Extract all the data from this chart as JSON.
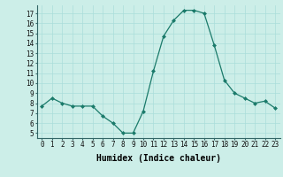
{
  "x": [
    0,
    1,
    2,
    3,
    4,
    5,
    6,
    7,
    8,
    9,
    10,
    11,
    12,
    13,
    14,
    15,
    16,
    17,
    18,
    19,
    20,
    21,
    22,
    23
  ],
  "y": [
    7.7,
    8.5,
    8.0,
    7.7,
    7.7,
    7.7,
    6.7,
    6.0,
    5.0,
    5.0,
    7.2,
    11.2,
    14.7,
    16.3,
    17.3,
    17.3,
    17.0,
    13.8,
    10.3,
    9.0,
    8.5,
    8.0,
    8.2,
    7.5
  ],
  "xlabel": "Humidex (Indice chaleur)",
  "ylim": [
    4.5,
    17.8
  ],
  "xlim": [
    -0.5,
    23.5
  ],
  "yticks": [
    5,
    6,
    7,
    8,
    9,
    10,
    11,
    12,
    13,
    14,
    15,
    16,
    17
  ],
  "xticks": [
    0,
    1,
    2,
    3,
    4,
    5,
    6,
    7,
    8,
    9,
    10,
    11,
    12,
    13,
    14,
    15,
    16,
    17,
    18,
    19,
    20,
    21,
    22,
    23
  ],
  "line_color": "#1a7a6a",
  "marker_color": "#1a7a6a",
  "bg_color": "#cceee8",
  "grid_color": "#aaddda",
  "xlabel_fontsize": 7,
  "tick_fontsize": 5.5
}
